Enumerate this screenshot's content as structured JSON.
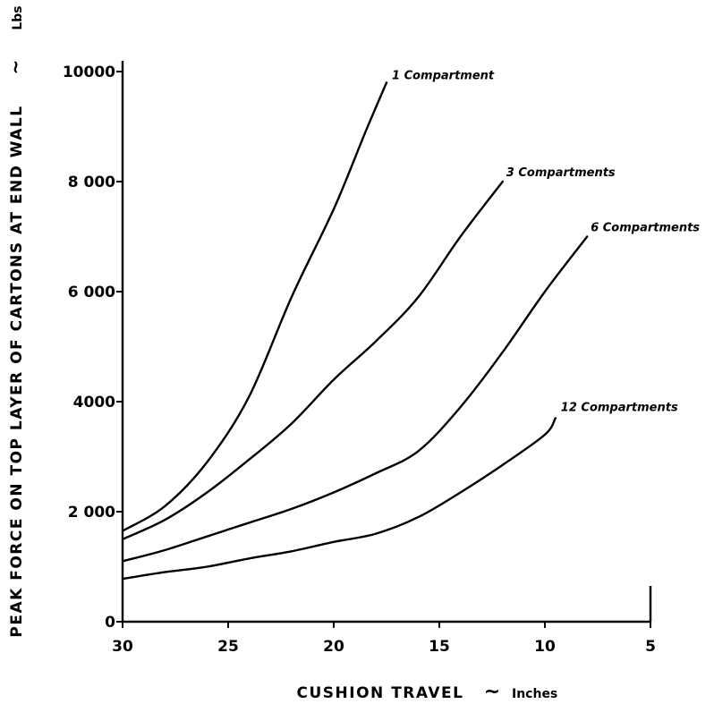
{
  "chart_data": {
    "type": "line",
    "xlabel": "CUSHION TRAVEL",
    "xunit": "Inches",
    "ylabel": "PEAK FORCE ON TOP LAYER OF CARTONS AT END WALL",
    "yunit": "Lbs",
    "xlim": [
      30,
      5
    ],
    "ylim": [
      0,
      10000
    ],
    "xticks": [
      30,
      25,
      20,
      15,
      10,
      5
    ],
    "xtick_labels": [
      "30",
      "25",
      "20",
      "15",
      "10",
      "5"
    ],
    "yticks": [
      0,
      2000,
      4000,
      6000,
      8000,
      10000
    ],
    "ytick_labels": [
      "0",
      "2 000",
      "4000",
      "6 000",
      "8 000",
      "10000"
    ],
    "series": [
      {
        "name": "1 Compartment",
        "points": [
          [
            30,
            1650
          ],
          [
            28,
            2100
          ],
          [
            26,
            2900
          ],
          [
            24,
            4100
          ],
          [
            22,
            5900
          ],
          [
            20,
            7500
          ],
          [
            18.5,
            8900
          ],
          [
            17.5,
            9800
          ]
        ]
      },
      {
        "name": "3 Compartments",
        "points": [
          [
            30,
            1500
          ],
          [
            28,
            1850
          ],
          [
            26,
            2350
          ],
          [
            24,
            2950
          ],
          [
            22,
            3600
          ],
          [
            20,
            4400
          ],
          [
            18,
            5100
          ],
          [
            16,
            5900
          ],
          [
            14,
            7000
          ],
          [
            12,
            8000
          ]
        ]
      },
      {
        "name": "6 Compartments",
        "points": [
          [
            30,
            1100
          ],
          [
            28,
            1300
          ],
          [
            26,
            1550
          ],
          [
            24,
            1800
          ],
          [
            22,
            2050
          ],
          [
            20,
            2350
          ],
          [
            18,
            2700
          ],
          [
            16,
            3100
          ],
          [
            14,
            3900
          ],
          [
            12,
            4900
          ],
          [
            10,
            6000
          ],
          [
            8,
            7000
          ]
        ]
      },
      {
        "name": "12 Compartments",
        "points": [
          [
            30,
            780
          ],
          [
            28,
            900
          ],
          [
            26,
            1000
          ],
          [
            24,
            1150
          ],
          [
            22,
            1280
          ],
          [
            20,
            1450
          ],
          [
            18,
            1600
          ],
          [
            16,
            1900
          ],
          [
            14,
            2350
          ],
          [
            12,
            2850
          ],
          [
            10,
            3400
          ],
          [
            9.5,
            3700
          ]
        ]
      }
    ]
  }
}
